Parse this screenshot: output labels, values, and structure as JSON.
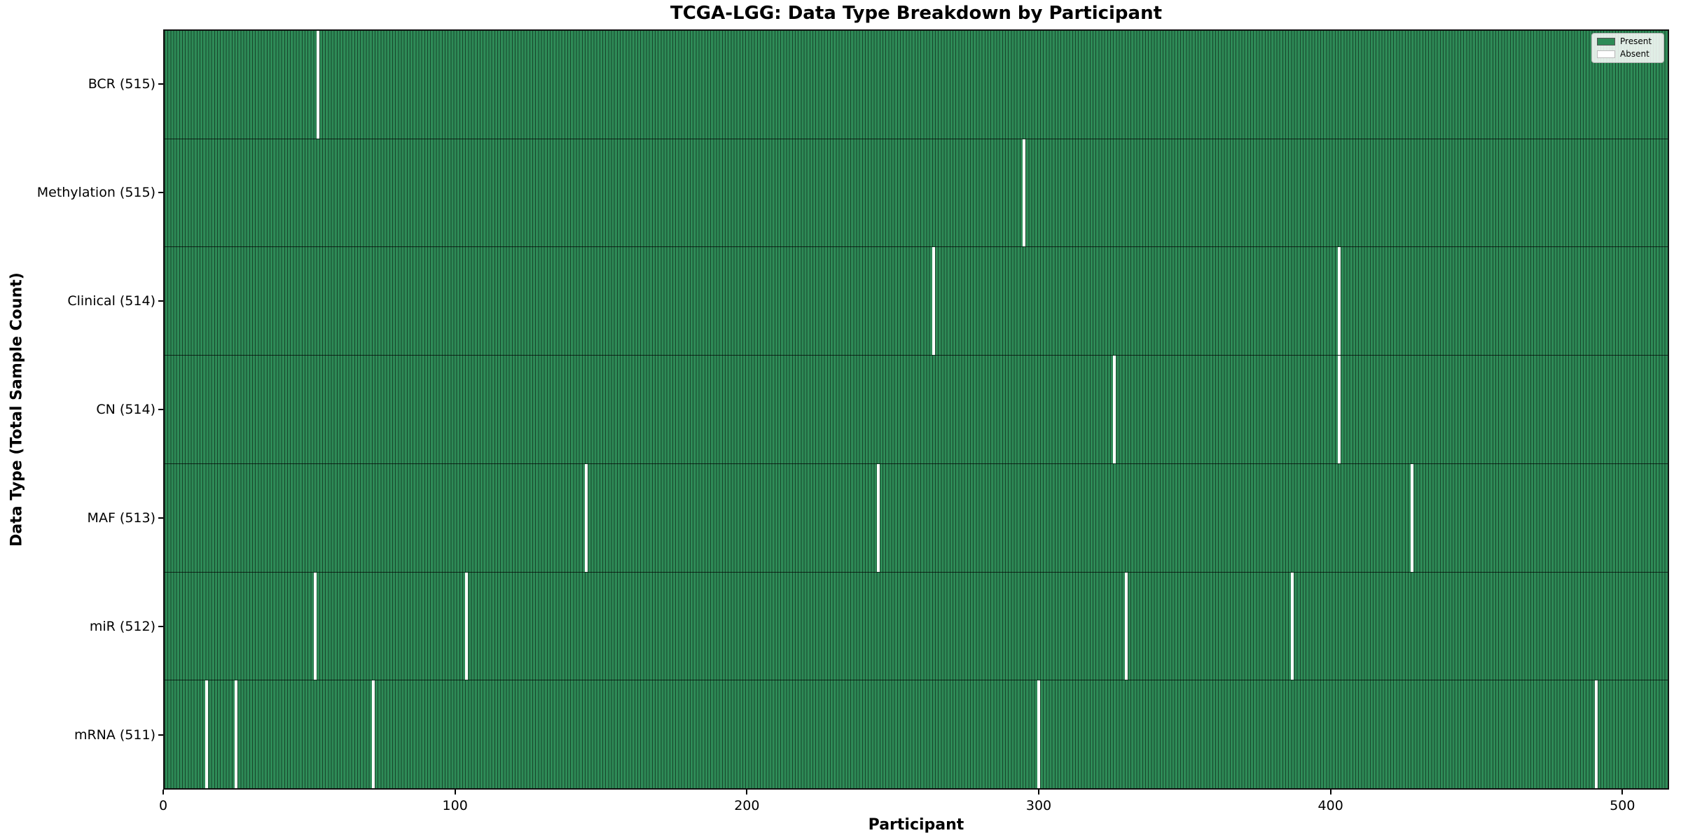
{
  "chart_data": {
    "type": "heatmap",
    "title": "TCGA-LGG: Data Type Breakdown by Participant",
    "xlabel": "Participant",
    "ylabel": "Data Type (Total Sample Count)",
    "n_participants": 516,
    "x_ticks": [
      0,
      100,
      200,
      300,
      400,
      500
    ],
    "xlim": [
      0,
      516
    ],
    "grid": false,
    "legend_position": "upper right",
    "legend": [
      {
        "label": "Present",
        "color": "#2e8b57"
      },
      {
        "label": "Absent",
        "color": "#ffffff"
      }
    ],
    "colors": {
      "present": "#2e8b57",
      "absent": "#ffffff",
      "cell_edge": "rgba(0,0,0,0.5)",
      "row_border": "rgba(0,0,0,0.7)",
      "swatch_edge": "#555555"
    },
    "rows": [
      {
        "label": "BCR (515)",
        "data_type": "BCR",
        "total": 515,
        "absent_participants": [
          52
        ]
      },
      {
        "label": "Methylation (515)",
        "data_type": "Methylation",
        "total": 515,
        "absent_participants": [
          294
        ]
      },
      {
        "label": "Clinical (514)",
        "data_type": "Clinical",
        "total": 514,
        "absent_participants": [
          263,
          402
        ]
      },
      {
        "label": "CN (514)",
        "data_type": "CN",
        "total": 514,
        "absent_participants": [
          325,
          402
        ]
      },
      {
        "label": "MAF (513)",
        "data_type": "MAF",
        "total": 513,
        "absent_participants": [
          144,
          244,
          427
        ]
      },
      {
        "label": "miR (512)",
        "data_type": "miR",
        "total": 512,
        "absent_participants": [
          51,
          103,
          329,
          386
        ]
      },
      {
        "label": "mRNA (511)",
        "data_type": "mRNA",
        "total": 511,
        "absent_participants": [
          14,
          24,
          71,
          299,
          490
        ]
      }
    ]
  }
}
